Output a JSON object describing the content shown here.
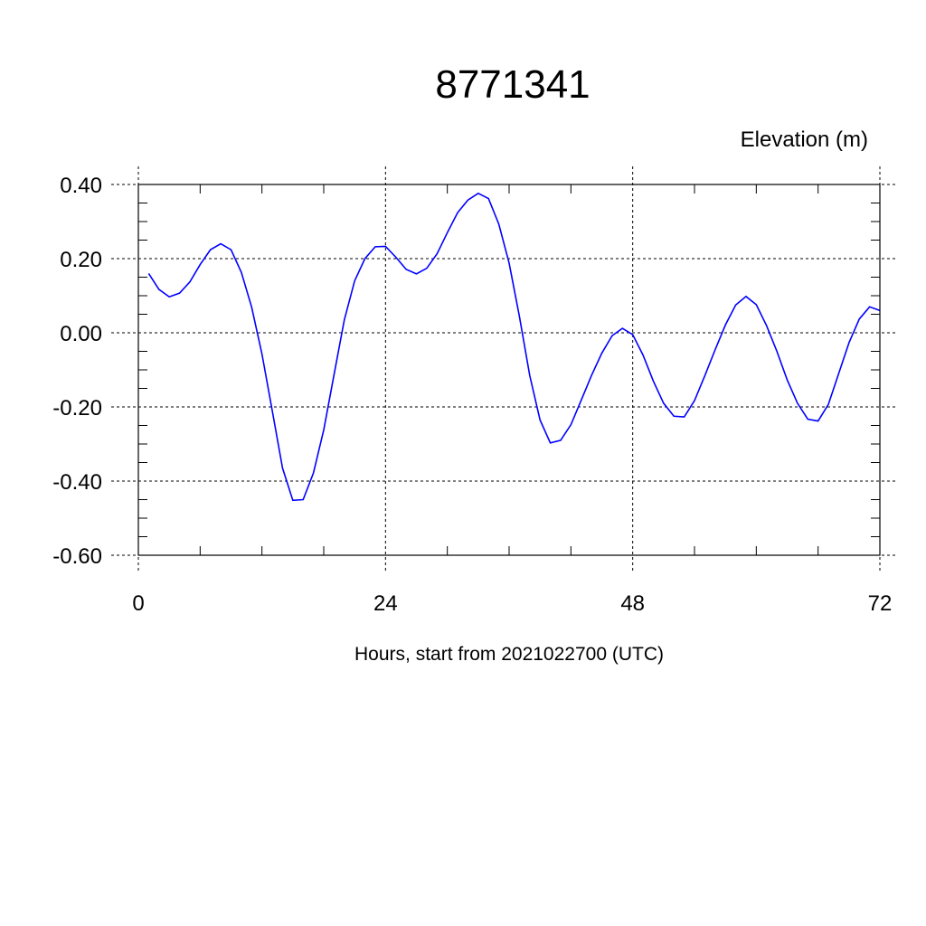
{
  "chart_data": {
    "type": "line",
    "title": "8771341",
    "subtitle": "Elevation (m)",
    "xlabel": "Hours, start from 2021022700 (UTC)",
    "ylabel": "",
    "xlim": [
      0,
      72
    ],
    "ylim": [
      -0.6,
      0.4
    ],
    "xticks": [
      0,
      24,
      48,
      72
    ],
    "xtick_labels": [
      "0",
      "24",
      "48",
      "72"
    ],
    "yticks": [
      0.4,
      0.2,
      0.0,
      -0.2,
      -0.4,
      -0.6
    ],
    "ytick_labels": [
      "0.40",
      "0.20",
      "0.00",
      "-0.20",
      "-0.40",
      "-0.60"
    ],
    "grid": true,
    "series": [
      {
        "color": "#0000ff",
        "x": [
          1,
          2,
          3,
          4,
          5,
          6,
          7,
          8,
          9,
          10,
          11,
          12,
          13,
          14,
          15,
          16,
          17,
          18,
          19,
          20,
          21,
          22,
          23,
          24,
          25,
          26,
          27,
          28,
          29,
          30,
          31,
          32,
          33,
          34,
          35,
          36,
          37,
          38,
          39,
          40,
          41,
          42,
          43,
          44,
          45,
          46,
          47,
          48,
          49,
          50,
          51,
          52,
          53,
          54,
          55,
          56,
          57,
          58,
          59,
          60,
          61,
          62,
          63,
          64,
          65,
          66,
          67,
          68,
          69,
          70,
          71,
          72
        ],
        "y": [
          0.16,
          0.117,
          0.097,
          0.107,
          0.137,
          0.184,
          0.224,
          0.24,
          0.224,
          0.163,
          0.069,
          -0.057,
          -0.21,
          -0.365,
          -0.452,
          -0.45,
          -0.378,
          -0.262,
          -0.113,
          0.035,
          0.14,
          0.2,
          0.232,
          0.233,
          0.204,
          0.171,
          0.159,
          0.174,
          0.213,
          0.27,
          0.324,
          0.358,
          0.376,
          0.362,
          0.293,
          0.188,
          0.044,
          -0.115,
          -0.235,
          -0.297,
          -0.29,
          -0.248,
          -0.182,
          -0.115,
          -0.055,
          -0.008,
          0.012,
          -0.005,
          -0.06,
          -0.13,
          -0.19,
          -0.225,
          -0.227,
          -0.183,
          -0.116,
          -0.046,
          0.021,
          0.075,
          0.098,
          0.076,
          0.019,
          -0.05,
          -0.127,
          -0.19,
          -0.233,
          -0.238,
          -0.193,
          -0.11,
          -0.027,
          0.037,
          0.07,
          0.06
        ]
      }
    ]
  }
}
